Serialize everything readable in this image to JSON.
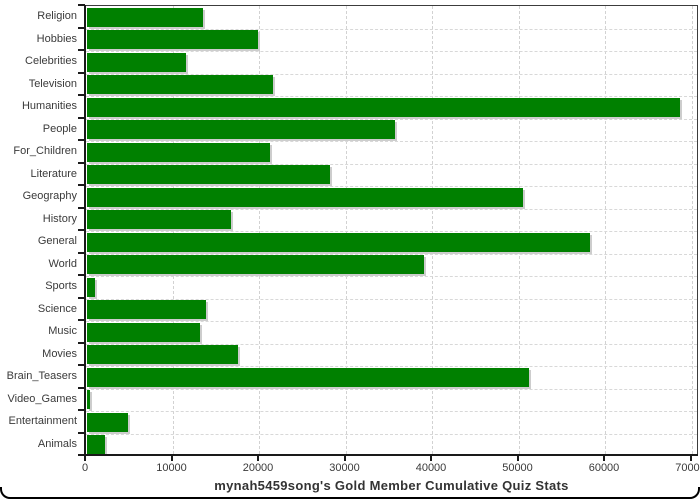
{
  "chart_data": {
    "type": "bar",
    "orientation": "horizontal",
    "title": "mynah5459song's Gold Member Cumulative Quiz Stats",
    "categories": [
      "Religion",
      "Hobbies",
      "Celebrities",
      "Television",
      "Humanities",
      "People",
      "For_Children",
      "Literature",
      "Geography",
      "History",
      "General",
      "World",
      "Sports",
      "Science",
      "Music",
      "Movies",
      "Brain_Teasers",
      "Video_Games",
      "Entertainment",
      "Animals"
    ],
    "values": [
      13400,
      19800,
      11400,
      21500,
      68500,
      35600,
      21200,
      28100,
      50400,
      16600,
      58200,
      39000,
      900,
      13800,
      13100,
      17500,
      51100,
      300,
      4700,
      2100
    ],
    "xlabel": "",
    "ylabel": "",
    "xlim": [
      0,
      70000
    ],
    "x_ticks": [
      0,
      10000,
      20000,
      30000,
      40000,
      50000,
      60000,
      70000
    ],
    "x_tick_labels": [
      "0",
      "10000",
      "20000",
      "30000",
      "40000",
      "50000",
      "60000",
      "70000"
    ],
    "grid": "dashed, vertical at every 10000 and horizontal at category boundaries",
    "legend": "none",
    "bar_color": "#008000",
    "bar_shadow_color": "#cdcdcd",
    "gridline_color": "#d5d5d5",
    "text_color": "#3a3a3a"
  }
}
